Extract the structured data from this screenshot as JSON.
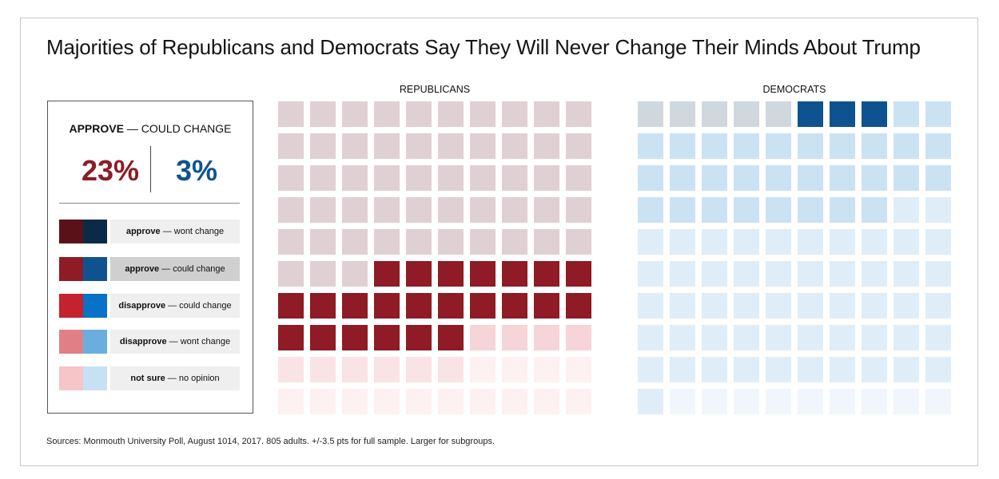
{
  "title": "Majorities of Republicans and Democrats Say They Will Never Change Their Minds About Trump",
  "source": "Sources: Monmouth University Poll, August 1014, 2017. 805 adults. +/-3.5 pts for full sample. Larger for subgroups.",
  "legend": {
    "selected_bold": "APPROVE",
    "selected_rest": " — COULD CHANGE",
    "rep_pct": "23%",
    "dem_pct": "3%",
    "items": [
      {
        "bold": "approve",
        "rest": " — wont change",
        "rep_color": "#5a1118",
        "dem_color": "#0b2a48",
        "active": false
      },
      {
        "bold": "approve",
        "rest": " — could change",
        "rep_color": "#8e1b25",
        "dem_color": "#0e5390",
        "active": true
      },
      {
        "bold": "disapprove",
        "rest": " — could change",
        "rep_color": "#c4222f",
        "dem_color": "#0a72c6",
        "active": false
      },
      {
        "bold": "disapprove",
        "rest": " — wont change",
        "rep_color": "#e08086",
        "dem_color": "#6aaedd",
        "active": false
      },
      {
        "bold": "not sure",
        "rest": " — no opinion",
        "rep_color": "#f5c5c8",
        "dem_color": "#c7e1f4",
        "active": false
      }
    ]
  },
  "chart_data": {
    "type": "waffle",
    "title": "Majorities of Republicans and Democrats Say They Will Never Change Their Minds About Trump",
    "units_per_group": 100,
    "highlighted_category": "approve — could change",
    "categories": [
      "approve — wont change",
      "approve — could change",
      "disapprove — could change",
      "disapprove — wont change",
      "not sure — no opinion"
    ],
    "groups": [
      {
        "name": "REPUBLICANS",
        "highlight_value": 23,
        "segments": [
          {
            "category": "approve — wont change",
            "value": 53,
            "color": "#e0d0d3"
          },
          {
            "category": "approve — could change",
            "value": 23,
            "color": "#8e1b25"
          },
          {
            "category": "disapprove — could change",
            "value": 4,
            "color": "#f6d4d7"
          },
          {
            "category": "disapprove — wont change",
            "value": 6,
            "color": "#f9e3e5"
          },
          {
            "category": "not sure — no opinion",
            "value": 14,
            "color": "#fdf1f2"
          }
        ]
      },
      {
        "name": "DEMOCRATS",
        "highlight_value": 3,
        "segments": [
          {
            "category": "approve — wont change",
            "value": 5,
            "color": "#cfd7df"
          },
          {
            "category": "approve — could change",
            "value": 3,
            "color": "#0e5390"
          },
          {
            "category": "disapprove — could change",
            "value": 30,
            "color": "#cbe2f3"
          },
          {
            "category": "disapprove — wont change",
            "value": 53,
            "color": "#dfedf8"
          },
          {
            "category": "not sure — no opinion",
            "value": 9,
            "color": "#f0f6fc"
          }
        ]
      }
    ]
  }
}
